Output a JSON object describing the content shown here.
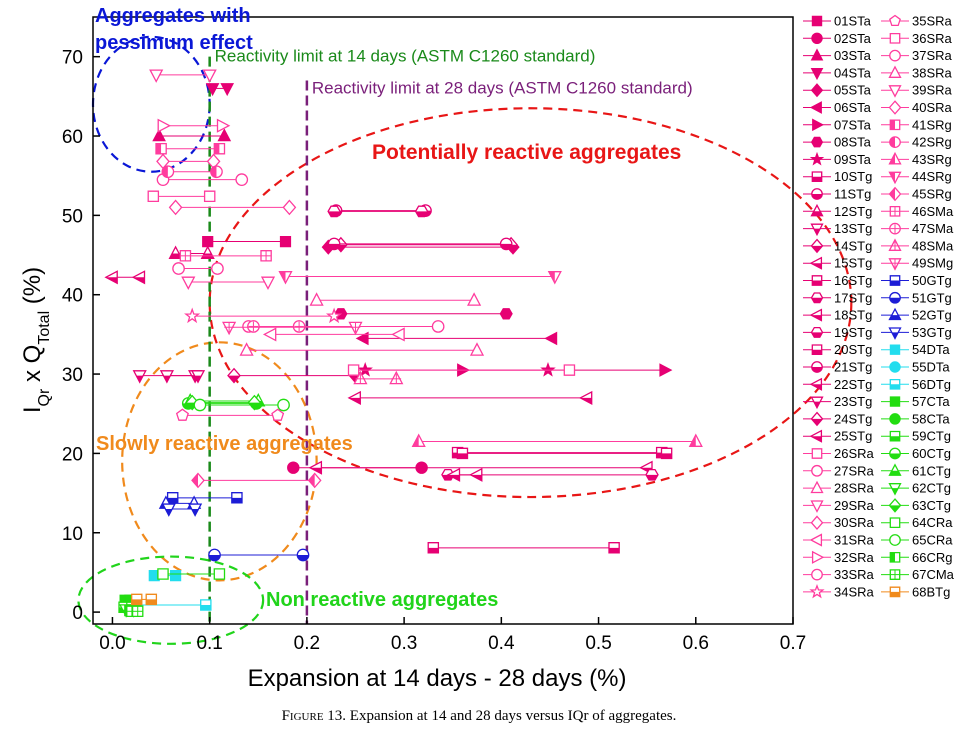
{
  "caption": {
    "prefix": "Figure 13.",
    "text": "Expansion at 14 and 28 days versus IQr of aggregates."
  },
  "chart_data": {
    "type": "scatter",
    "xlabel": "Expansion at 14 days - 28 days (%)",
    "ylabel_main": "I",
    "ylabel_sub1": "Qr",
    "ylabel_mid": " x Q",
    "ylabel_sub2": "Total",
    "ylabel_end": " (%)",
    "xlim": [
      -0.02,
      0.7
    ],
    "ylim": [
      -1.5,
      75
    ],
    "xticks": [
      "0.0",
      "0.1",
      "0.2",
      "0.3",
      "0.4",
      "0.5",
      "0.6",
      "0.7"
    ],
    "xtick_values": [
      0,
      0.1,
      0.2,
      0.3,
      0.4,
      0.5,
      0.6,
      0.7
    ],
    "yticks": [
      "0",
      "10",
      "20",
      "30",
      "40",
      "50",
      "60",
      "70"
    ],
    "ytick_values": [
      0,
      10,
      20,
      30,
      40,
      50,
      60,
      70
    ],
    "reference_lines": [
      {
        "x": 0.1,
        "label": "Reactivity limit at 14 days (ASTM C1260 standard)",
        "color": "#1a8a1a"
      },
      {
        "x": 0.2,
        "label": "Reactivity limit at 28 days (ASTM C1260 standard)",
        "color": "#7a1f7a"
      }
    ],
    "groups": [
      {
        "label": "Aggregates with\npessimum effect",
        "color": "#0a17d6",
        "cx": 0.04,
        "cy": 64,
        "rx": 0.06,
        "ry": 8.5
      },
      {
        "label": "Potentially reactive aggregates",
        "color": "#e81616",
        "cx": 0.43,
        "cy": 39,
        "rx": 0.33,
        "ry": 24.5
      },
      {
        "label": "Slowly reactive aggregates",
        "color": "#f08a1c",
        "cx": 0.11,
        "cy": 19,
        "rx": 0.1,
        "ry": 15
      },
      {
        "label": "Non reactive aggregates",
        "color": "#21d41b",
        "cx": 0.06,
        "cy": 1.5,
        "rx": 0.095,
        "ry": 5.5
      }
    ],
    "series": [
      {
        "name": "01STa",
        "y": 46.7,
        "x14": 0.098,
        "x28": 0.178,
        "color": "#e60073",
        "marker": "square",
        "fill": "solid"
      },
      {
        "name": "02STa",
        "y": 18.2,
        "x14": 0.186,
        "x28": 0.318,
        "color": "#e60073",
        "marker": "circle",
        "fill": "solid"
      },
      {
        "name": "03STa",
        "y": 60.0,
        "x14": 0.048,
        "x28": 0.115,
        "color": "#e60073",
        "marker": "triangle-up",
        "fill": "solid"
      },
      {
        "name": "04STa",
        "y": 66.0,
        "x14": 0.103,
        "x28": 0.118,
        "color": "#e60073",
        "marker": "triangle-down",
        "fill": "solid"
      },
      {
        "name": "05STa",
        "y": 46.0,
        "x14": 0.222,
        "x28": 0.412,
        "color": "#e60073",
        "marker": "diamond",
        "fill": "solid"
      },
      {
        "name": "06STa",
        "y": 34.5,
        "x14": 0.258,
        "x28": 0.452,
        "color": "#e60073",
        "marker": "triangle-left",
        "fill": "solid"
      },
      {
        "name": "07STa",
        "y": 30.5,
        "x14": 0.36,
        "x28": 0.568,
        "color": "#e60073",
        "marker": "triangle-right",
        "fill": "solid"
      },
      {
        "name": "08STa",
        "y": 37.6,
        "x14": 0.235,
        "x28": 0.405,
        "color": "#e60073",
        "marker": "hexagon",
        "fill": "solid"
      },
      {
        "name": "09STa",
        "y": 30.5,
        "x14": 0.26,
        "x28": 0.448,
        "color": "#e60073",
        "marker": "star",
        "fill": "solid"
      },
      {
        "name": "10STg",
        "y": 8.1,
        "x14": 0.33,
        "x28": 0.516,
        "color": "#e60073",
        "marker": "square",
        "fill": "half"
      },
      {
        "name": "11STg",
        "y": 50.6,
        "x14": 0.23,
        "x28": 0.322,
        "color": "#e60073",
        "marker": "circle",
        "fill": "half"
      },
      {
        "name": "12STg",
        "y": 45.2,
        "x14": 0.065,
        "x28": 0.098,
        "color": "#e60073",
        "marker": "triangle-up",
        "fill": "half"
      },
      {
        "name": "13STg",
        "y": 29.8,
        "x14": 0.028,
        "x28": 0.085,
        "color": "#e60073",
        "marker": "triangle-down",
        "fill": "half"
      },
      {
        "name": "14STg",
        "y": 46.3,
        "x14": 0.235,
        "x28": 0.41,
        "color": "#e60073",
        "marker": "diamond",
        "fill": "half"
      },
      {
        "name": "15STg",
        "y": 27.0,
        "x14": 0.25,
        "x28": 0.488,
        "color": "#e60073",
        "marker": "triangle-left",
        "fill": "half"
      },
      {
        "name": "16STg",
        "y": 20.1,
        "x14": 0.355,
        "x28": 0.565,
        "color": "#e60073",
        "marker": "square",
        "fill": "half"
      },
      {
        "name": "17STg",
        "y": 50.5,
        "x14": 0.228,
        "x28": 0.318,
        "color": "#e60073",
        "marker": "hexagon",
        "fill": "half"
      },
      {
        "name": "18STg",
        "y": 18.2,
        "x14": 0.21,
        "x28": 0.55,
        "color": "#e60073",
        "marker": "triangle-left",
        "fill": "half"
      },
      {
        "name": "19STg",
        "y": 17.3,
        "x14": 0.345,
        "x28": 0.555,
        "color": "#e60073",
        "marker": "hexagon",
        "fill": "half"
      },
      {
        "name": "20STg",
        "y": 20.0,
        "x14": 0.36,
        "x28": 0.57,
        "color": "#e60073",
        "marker": "square",
        "fill": "half"
      },
      {
        "name": "21STg",
        "y": 46.4,
        "x14": 0.228,
        "x28": 0.405,
        "color": "#e60073",
        "marker": "circle",
        "fill": "half"
      },
      {
        "name": "22STg",
        "y": 17.3,
        "x14": 0.352,
        "x28": 0.375,
        "color": "#e60073",
        "marker": "triangle-left",
        "fill": "half"
      },
      {
        "name": "23STg",
        "y": 29.8,
        "x14": 0.056,
        "x28": 0.088,
        "color": "#e60073",
        "marker": "triangle-down",
        "fill": "half"
      },
      {
        "name": "24STg",
        "y": 29.8,
        "x14": 0.125,
        "x28": 0.25,
        "color": "#e60073",
        "marker": "diamond",
        "fill": "half"
      },
      {
        "name": "25STg",
        "y": 42.2,
        "x14": 0.0,
        "x28": 0.028,
        "color": "#e60073",
        "marker": "triangle-left",
        "fill": "half"
      },
      {
        "name": "26SRa",
        "y": 52.4,
        "x14": 0.042,
        "x28": 0.1,
        "color": "#ff3c9e",
        "marker": "square",
        "fill": "open"
      },
      {
        "name": "27SRa",
        "y": 54.5,
        "x14": 0.052,
        "x28": 0.133,
        "color": "#ff3c9e",
        "marker": "circle",
        "fill": "open"
      },
      {
        "name": "28SRa",
        "y": 39.3,
        "x14": 0.21,
        "x28": 0.372,
        "color": "#ff3c9e",
        "marker": "triangle-up",
        "fill": "open"
      },
      {
        "name": "29SRa",
        "y": 41.6,
        "x14": 0.078,
        "x28": 0.16,
        "color": "#ff3c9e",
        "marker": "triangle-down",
        "fill": "open"
      },
      {
        "name": "30SRa",
        "y": 51.0,
        "x14": 0.065,
        "x28": 0.182,
        "color": "#ff3c9e",
        "marker": "diamond",
        "fill": "open"
      },
      {
        "name": "31SRa",
        "y": 35.0,
        "x14": 0.163,
        "x28": 0.295,
        "color": "#ff3c9e",
        "marker": "triangle-left",
        "fill": "open"
      },
      {
        "name": "32SRa",
        "y": 61.3,
        "x14": 0.052,
        "x28": 0.113,
        "color": "#ff3c9e",
        "marker": "triangle-right",
        "fill": "open"
      },
      {
        "name": "33SRa",
        "y": 36.0,
        "x14": 0.14,
        "x28": 0.335,
        "color": "#ff3c9e",
        "marker": "circle",
        "fill": "open"
      },
      {
        "name": "34SRa",
        "y": 37.3,
        "x14": 0.082,
        "x28": 0.228,
        "color": "#ff3c9e",
        "marker": "star",
        "fill": "open"
      },
      {
        "name": "35SRa",
        "y": 24.8,
        "x14": 0.072,
        "x28": 0.17,
        "color": "#ff3c9e",
        "marker": "pentagon",
        "fill": "open"
      },
      {
        "name": "36SRa",
        "y": 30.5,
        "x14": 0.248,
        "x28": 0.47,
        "color": "#ff3c9e",
        "marker": "square",
        "fill": "open"
      },
      {
        "name": "37SRa",
        "y": 43.3,
        "x14": 0.068,
        "x28": 0.108,
        "color": "#ff3c9e",
        "marker": "circle",
        "fill": "open"
      },
      {
        "name": "38SRa",
        "y": 33.0,
        "x14": 0.138,
        "x28": 0.375,
        "color": "#ff3c9e",
        "marker": "triangle-up",
        "fill": "open"
      },
      {
        "name": "39SRa",
        "y": 67.7,
        "x14": 0.045,
        "x28": 0.1,
        "color": "#ff3c9e",
        "marker": "triangle-down",
        "fill": "open"
      },
      {
        "name": "40SRa",
        "y": 56.8,
        "x14": 0.052,
        "x28": 0.104,
        "color": "#ff3c9e",
        "marker": "diamond",
        "fill": "open"
      },
      {
        "name": "41SRg",
        "y": 58.4,
        "x14": 0.05,
        "x28": 0.11,
        "color": "#ff3c9e",
        "marker": "square",
        "fill": "half-v"
      },
      {
        "name": "42SRg",
        "y": 55.5,
        "x14": 0.057,
        "x28": 0.107,
        "color": "#ff3c9e",
        "marker": "circle",
        "fill": "half-v"
      },
      {
        "name": "43SRg",
        "y": 21.5,
        "x14": 0.315,
        "x28": 0.6,
        "color": "#ff3c9e",
        "marker": "triangle-up",
        "fill": "half-v"
      },
      {
        "name": "44SRg",
        "y": 42.3,
        "x14": 0.178,
        "x28": 0.455,
        "color": "#ff3c9e",
        "marker": "triangle-down",
        "fill": "half-v"
      },
      {
        "name": "45SRg",
        "y": 16.6,
        "x14": 0.088,
        "x28": 0.208,
        "color": "#ff3c9e",
        "marker": "diamond",
        "fill": "half-v"
      },
      {
        "name": "46SMa",
        "y": 44.9,
        "x14": 0.075,
        "x28": 0.158,
        "color": "#ff3c9e",
        "marker": "square",
        "fill": "cross"
      },
      {
        "name": "47SMa",
        "y": 36.0,
        "x14": 0.145,
        "x28": 0.192,
        "color": "#ff3c9e",
        "marker": "circle",
        "fill": "cross"
      },
      {
        "name": "48SMa",
        "y": 29.4,
        "x14": 0.255,
        "x28": 0.292,
        "color": "#ff3c9e",
        "marker": "triangle-up",
        "fill": "cross"
      },
      {
        "name": "49SMg",
        "y": 35.9,
        "x14": 0.12,
        "x28": 0.25,
        "color": "#ff3c9e",
        "marker": "triangle-down",
        "fill": "cross"
      },
      {
        "name": "50GTg",
        "y": 14.4,
        "x14": 0.062,
        "x28": 0.128,
        "color": "#1c1cd6",
        "marker": "square",
        "fill": "half"
      },
      {
        "name": "51GTg",
        "y": 7.2,
        "x14": 0.105,
        "x28": 0.196,
        "color": "#1c1cd6",
        "marker": "circle",
        "fill": "half"
      },
      {
        "name": "52GTg",
        "y": 13.7,
        "x14": 0.055,
        "x28": 0.084,
        "color": "#1c1cd6",
        "marker": "triangle-up",
        "fill": "half"
      },
      {
        "name": "53GTg",
        "y": 13.0,
        "x14": 0.058,
        "x28": 0.085,
        "color": "#1c1cd6",
        "marker": "triangle-down",
        "fill": "half"
      },
      {
        "name": "54DTa",
        "y": 4.6,
        "x14": 0.043,
        "x28": 0.065,
        "color": "#22ddee",
        "marker": "square",
        "fill": "solid"
      },
      {
        "name": "55DTa",
        "y": 0.8,
        "x14": 0.015,
        "x28": 0.02,
        "color": "#22ddee",
        "marker": "circle",
        "fill": "solid"
      },
      {
        "name": "56DTg",
        "y": 0.9,
        "x14": 0.017,
        "x28": 0.096,
        "color": "#22ddee",
        "marker": "square",
        "fill": "half"
      },
      {
        "name": "57CTa",
        "y": 1.5,
        "x14": 0.013,
        "x28": 0.018,
        "color": "#22dd11",
        "marker": "square",
        "fill": "solid"
      },
      {
        "name": "58CTa",
        "y": 0.4,
        "x14": 0.018,
        "x28": 0.023,
        "color": "#22dd11",
        "marker": "circle",
        "fill": "solid"
      },
      {
        "name": "59CTg",
        "y": 0.6,
        "x14": 0.012,
        "x28": 0.02,
        "color": "#22dd11",
        "marker": "square",
        "fill": "half"
      },
      {
        "name": "60CTg",
        "y": 26.3,
        "x14": 0.078,
        "x28": 0.148,
        "color": "#22dd11",
        "marker": "circle",
        "fill": "half"
      },
      {
        "name": "61CTg",
        "y": 26.6,
        "x14": 0.08,
        "x28": 0.15,
        "color": "#22dd11",
        "marker": "triangle-up",
        "fill": "half"
      },
      {
        "name": "62CTg",
        "y": 0.3,
        "x14": 0.014,
        "x28": 0.022,
        "color": "#22dd11",
        "marker": "triangle-down",
        "fill": "half"
      },
      {
        "name": "63CTg",
        "y": 26.4,
        "x14": 0.082,
        "x28": 0.146,
        "color": "#22dd11",
        "marker": "diamond",
        "fill": "half"
      },
      {
        "name": "64CRa",
        "y": 4.8,
        "x14": 0.052,
        "x28": 0.11,
        "color": "#22dd11",
        "marker": "square",
        "fill": "open"
      },
      {
        "name": "65CRa",
        "y": 26.1,
        "x14": 0.09,
        "x28": 0.176,
        "color": "#22dd11",
        "marker": "circle",
        "fill": "open"
      },
      {
        "name": "66CRg",
        "y": 0.2,
        "x14": 0.018,
        "x28": 0.024,
        "color": "#22dd11",
        "marker": "square",
        "fill": "half-v"
      },
      {
        "name": "67CMa",
        "y": 0.1,
        "x14": 0.02,
        "x28": 0.026,
        "color": "#22dd11",
        "marker": "square",
        "fill": "cross"
      },
      {
        "name": "68BTg",
        "y": 1.6,
        "x14": 0.025,
        "x28": 0.04,
        "color": "#f08a1c",
        "marker": "square",
        "fill": "half"
      }
    ]
  }
}
